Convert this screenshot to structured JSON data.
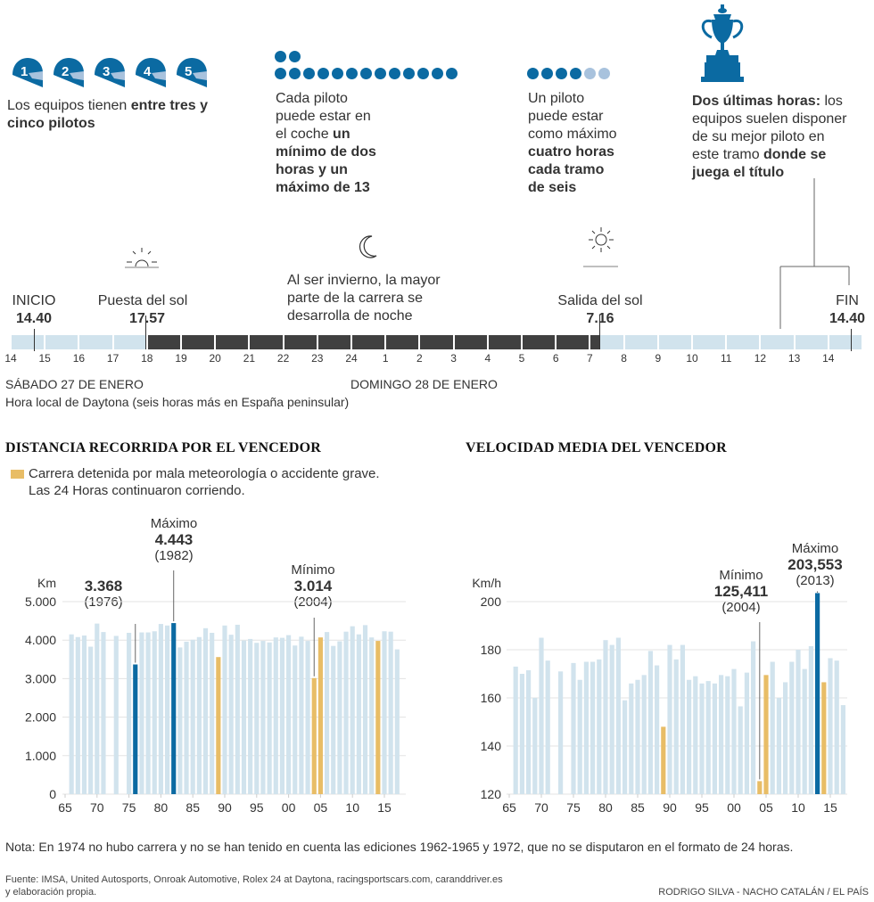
{
  "top": {
    "helmets": {
      "numbers": [
        "1",
        "2",
        "3",
        "4",
        "5"
      ],
      "text_plain": "Los equipos tienen ",
      "text_bold": "entre tres y cinco pilotos"
    },
    "driver_time": {
      "dots_row1": 2,
      "dots_row2": 13,
      "line1": "Cada piloto",
      "line2": "puede estar en",
      "line3_plain": "el coche ",
      "line3_bold": "un",
      "line4_bold": "mínimo de dos",
      "line5_bold": "horas y un",
      "line6_bold": "máximo de 13"
    },
    "max_stint": {
      "dots_dark": 4,
      "dots_light": 2,
      "line1": "Un piloto",
      "line2": "puede estar",
      "line3": "como máximo",
      "line4_bold": "cuatro horas",
      "line5_bold": "cada tramo",
      "line6_bold": "de seis"
    },
    "last_hours": {
      "icon": "trophy-icon",
      "line1_bold": "Dos últimas horas:",
      "line1_plain": " los",
      "line2": "equipos suelen disponer",
      "line3": "de su mejor piloto en",
      "line4_plain": "este tramo ",
      "line4_bold": "donde se",
      "line5_bold": "juega el título"
    }
  },
  "timeline": {
    "start_label": "INICIO",
    "start_time": "14.40",
    "sunset_label": "Puesta del sol",
    "sunset_time": "17.57",
    "night_note": [
      "Al ser invierno, la mayor",
      "parte de la carrera se",
      "desarrolla de noche"
    ],
    "sunrise_label": "Salida del sol",
    "sunrise_time": "7.16",
    "end_label": "FIN",
    "end_time": "14.40",
    "hours": [
      "14",
      "15",
      "16",
      "17",
      "18",
      "19",
      "20",
      "21",
      "22",
      "23",
      "24",
      "1",
      "2",
      "3",
      "4",
      "5",
      "6",
      "7",
      "8",
      "9",
      "10",
      "11",
      "12",
      "13",
      "14"
    ],
    "day1": "SÁBADO 27 DE ENERO",
    "day2": "DOMINGO 28 DE ENERO",
    "tz_note": "Hora local de Daytona (seis horas más en España peninsular)",
    "colors": {
      "day": "#d1e3ed",
      "night": "#404040"
    }
  },
  "chart_data": [
    {
      "type": "bar",
      "title": "DISTANCIA RECORRIDA POR EL VENCEDOR",
      "legend": [
        "Carrera detenida por mala meteorología o accidente grave.",
        "Las 24 Horas continuaron corriendo."
      ],
      "ylabel": "Km",
      "ylim": [
        0,
        5000
      ],
      "yticks": [
        0,
        1000,
        2000,
        3000,
        4000,
        5000
      ],
      "ytick_labels": [
        "0",
        "1.000",
        "2.000",
        "3.000",
        "4.000",
        "5.000"
      ],
      "xticks": [
        1965,
        1970,
        1975,
        1980,
        1985,
        1990,
        1995,
        2000,
        2005,
        2010,
        2015
      ],
      "xtick_labels": [
        "65",
        "70",
        "75",
        "80",
        "85",
        "90",
        "95",
        "00",
        "05",
        "10",
        "15"
      ],
      "x": [
        1966,
        1967,
        1968,
        1969,
        1970,
        1971,
        1973,
        1975,
        1976,
        1977,
        1978,
        1979,
        1980,
        1981,
        1982,
        1983,
        1984,
        1985,
        1986,
        1987,
        1988,
        1989,
        1990,
        1991,
        1992,
        1993,
        1994,
        1995,
        1996,
        1997,
        1998,
        1999,
        2000,
        2001,
        2002,
        2003,
        2004,
        2005,
        2006,
        2007,
        2008,
        2009,
        2010,
        2011,
        2012,
        2013,
        2014,
        2015,
        2016,
        2017
      ],
      "values": [
        4150,
        4080,
        4120,
        3830,
        4430,
        4210,
        4110,
        4190,
        3368,
        4200,
        4200,
        4230,
        4420,
        4380,
        4443,
        3810,
        3960,
        4010,
        4080,
        4310,
        4190,
        3560,
        4380,
        4140,
        4400,
        3990,
        4030,
        3930,
        3980,
        3940,
        4070,
        4060,
        4130,
        3860,
        4090,
        3980,
        3014,
        4070,
        4210,
        3850,
        3970,
        4220,
        4360,
        4150,
        4390,
        4070,
        3980,
        4230,
        4220,
        3760
      ],
      "highlight": {
        "1976": "extreme",
        "1982": "extreme",
        "1989": "stopped",
        "2004": "stopped",
        "2005": "stopped",
        "2014": "stopped"
      },
      "annotations": [
        {
          "year": 1976,
          "label": "",
          "value_text": "3.368",
          "year_text": "(1976)"
        },
        {
          "year": 1982,
          "label": "Máximo",
          "value_text": "4.443",
          "year_text": "(1982)"
        },
        {
          "year": 2004,
          "label": "Mínimo",
          "value_text": "3.014",
          "year_text": "(2004)"
        }
      ],
      "colors": {
        "normal": "#d1e3ed",
        "extreme": "#0b6aa2",
        "stopped": "#e8bd66"
      }
    },
    {
      "type": "bar",
      "title": "VELOCIDAD MEDIA DEL VENCEDOR",
      "ylabel": "Km/h",
      "ylim": [
        120,
        200
      ],
      "yticks": [
        120,
        140,
        160,
        180,
        200
      ],
      "ytick_labels": [
        "120",
        "140",
        "160",
        "180",
        "200"
      ],
      "xticks": [
        1965,
        1970,
        1975,
        1980,
        1985,
        1990,
        1995,
        2000,
        2005,
        2010,
        2015
      ],
      "xtick_labels": [
        "65",
        "70",
        "75",
        "80",
        "85",
        "90",
        "95",
        "00",
        "05",
        "10",
        "15"
      ],
      "x": [
        1966,
        1967,
        1968,
        1969,
        1970,
        1971,
        1973,
        1975,
        1976,
        1977,
        1978,
        1979,
        1980,
        1981,
        1982,
        1983,
        1984,
        1985,
        1986,
        1987,
        1988,
        1989,
        1990,
        1991,
        1992,
        1993,
        1994,
        1995,
        1996,
        1997,
        1998,
        1999,
        2000,
        2001,
        2002,
        2003,
        2004,
        2005,
        2006,
        2007,
        2008,
        2009,
        2010,
        2011,
        2012,
        2013,
        2014,
        2015,
        2016,
        2017
      ],
      "values": [
        173,
        170,
        171.5,
        160,
        185,
        175.5,
        171,
        174.5,
        167.5,
        175,
        175,
        176,
        184,
        182,
        185,
        159,
        166,
        167.5,
        169.5,
        179.5,
        173.5,
        148,
        182,
        176,
        182,
        167.5,
        169,
        166,
        167,
        166,
        169.5,
        169,
        172,
        156.5,
        170.5,
        183.5,
        125.411,
        169.5,
        175,
        160,
        166.5,
        175,
        180,
        172,
        181.5,
        203.553,
        166.5,
        176.5,
        175.5,
        157
      ],
      "highlight": {
        "1989": "stopped",
        "2004": "stopped",
        "2005": "stopped",
        "2013": "extreme",
        "2014": "stopped"
      },
      "annotations": [
        {
          "year": 2004,
          "label": "Mínimo",
          "value_text": "125,411",
          "year_text": "(2004)"
        },
        {
          "year": 2013,
          "label": "Máximo",
          "value_text": "203,553",
          "year_text": "(2013)"
        }
      ],
      "colors": {
        "normal": "#d1e3ed",
        "extreme": "#0b6aa2",
        "stopped": "#e8bd66"
      }
    }
  ],
  "footer": {
    "note": "Nota: En 1974 no hubo carrera y no se han tenido en cuenta las ediciones 1962-1965 y 1972, que no se disputaron en el formato de 24 horas.",
    "source_line1": "Fuente: IMSA, United Autosports, Onroak Automotive, Rolex 24 at Daytona, racingsportscars.com, caranddriver.es",
    "source_line2": "y elaboración propia.",
    "credits": "RODRIGO SILVA - NACHO CATALÁN / EL PAÍS"
  }
}
